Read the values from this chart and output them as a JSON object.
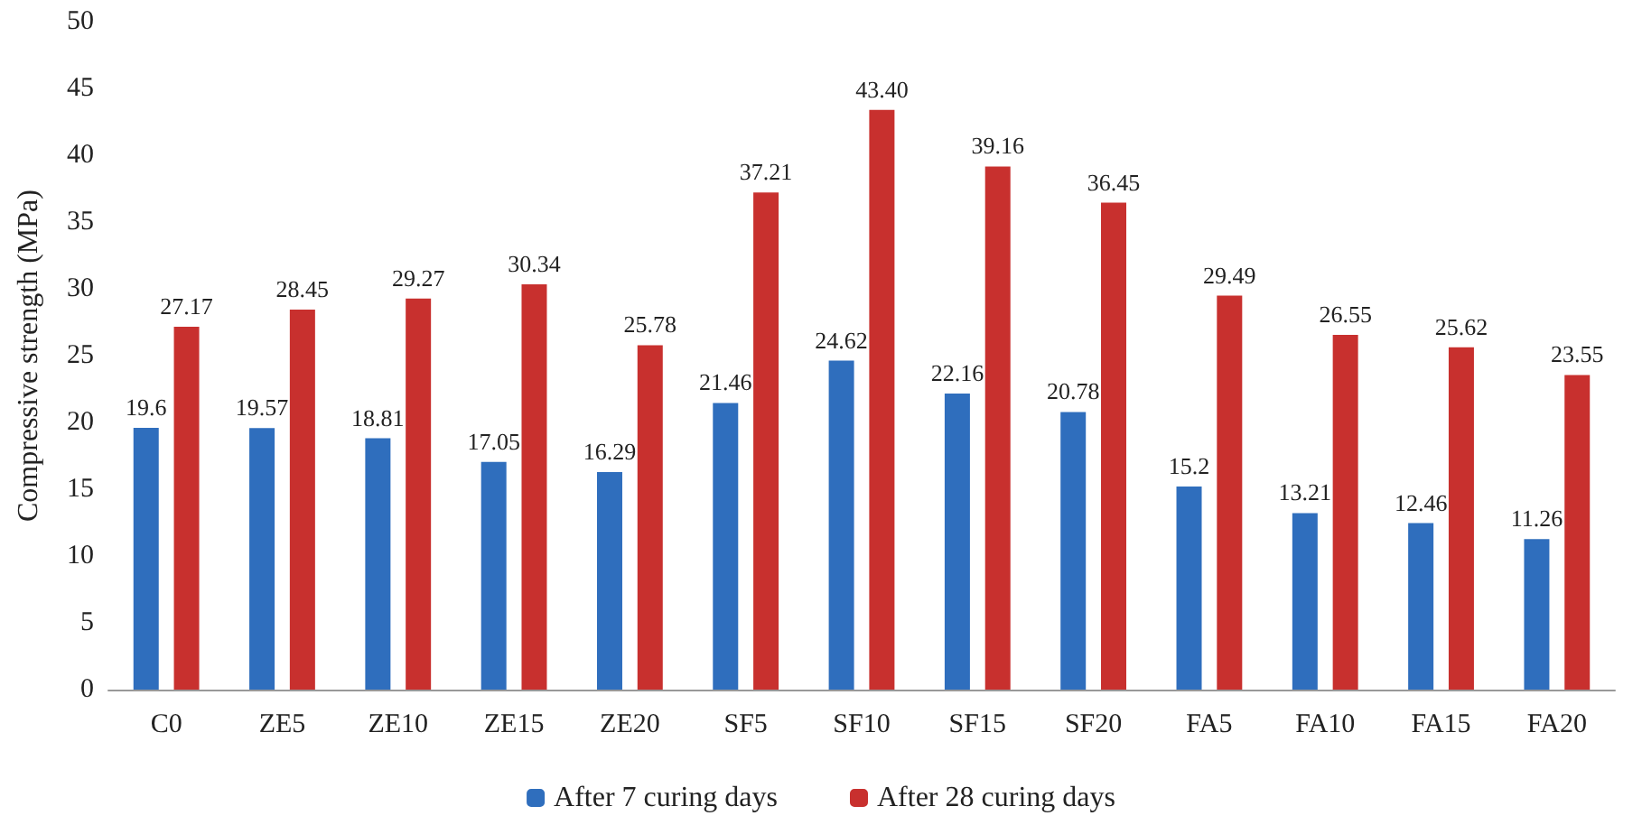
{
  "chart_data": {
    "type": "bar",
    "ylabel": "Compressive strength (MPa)",
    "categories": [
      "C0",
      "ZE5",
      "ZE10",
      "ZE15",
      "ZE20",
      "SF5",
      "SF10",
      "SF15",
      "SF20",
      "FA5",
      "FA10",
      "FA15",
      "FA20"
    ],
    "series": [
      {
        "name": "After 7 curing days",
        "color": "#2f6ebd",
        "values": [
          19.6,
          19.57,
          18.81,
          17.05,
          16.29,
          21.46,
          24.62,
          22.16,
          20.78,
          15.2,
          13.21,
          12.46,
          11.26
        ],
        "value_labels": [
          "19.6",
          "19.57",
          "18.81",
          "17.05",
          "16.29",
          "21.46",
          "24.62",
          "22.16",
          "20.78",
          "15.2",
          "13.21",
          "12.46",
          "11.26"
        ]
      },
      {
        "name": "After 28 curing days",
        "color": "#c8302e",
        "values": [
          27.17,
          28.45,
          29.27,
          30.34,
          25.78,
          37.21,
          43.4,
          39.16,
          36.45,
          29.49,
          26.55,
          25.62,
          23.55
        ],
        "value_labels": [
          "27.17",
          "28.45",
          "29.27",
          "30.34",
          "25.78",
          "37.21",
          "43.40",
          "39.16",
          "36.45",
          "29.49",
          "26.55",
          "25.62",
          "23.55"
        ]
      }
    ],
    "ylim": [
      0,
      50
    ],
    "yticks": [
      0,
      5,
      10,
      15,
      20,
      25,
      30,
      35,
      40,
      45,
      50
    ],
    "grid": false,
    "legend": "bottom"
  }
}
